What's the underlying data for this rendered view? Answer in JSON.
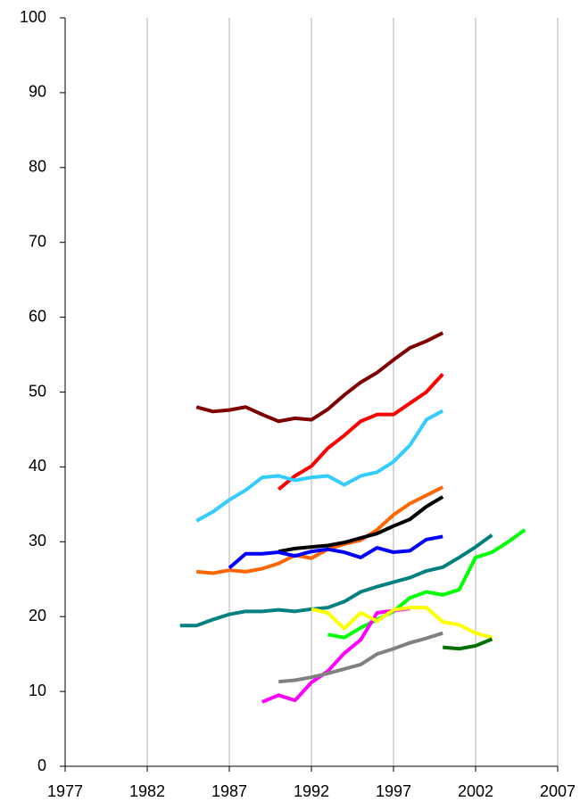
{
  "chart_data": {
    "type": "line",
    "xlim": [
      1977,
      2007
    ],
    "xticks": [
      1977,
      1982,
      1987,
      1992,
      1997,
      2002,
      2007
    ],
    "ylim": [
      0,
      100
    ],
    "yticks": [
      0,
      10,
      20,
      30,
      40,
      50,
      60,
      70,
      80,
      90,
      100
    ],
    "grid": "x",
    "series": [
      {
        "color": "#800000",
        "x": [
          1985,
          1986,
          1987,
          1988,
          1989,
          1990,
          1991,
          1992,
          1993,
          1994,
          1995,
          1996,
          1997,
          1998,
          1999,
          2000
        ],
        "values": [
          48,
          47.4,
          47.6,
          48,
          47,
          46.1,
          46.5,
          46.3,
          47.7,
          49.6,
          51.3,
          52.6,
          54.3,
          55.9,
          56.8,
          57.9
        ]
      },
      {
        "color": "#ff0000",
        "x": [
          1990,
          1991,
          1992,
          1993,
          1994,
          1995,
          1996,
          1997,
          1998,
          1999,
          2000
        ],
        "values": [
          37,
          38.8,
          40.1,
          42.5,
          44.2,
          46.1,
          47,
          47,
          48.5,
          50,
          52.4
        ]
      },
      {
        "color": "#33ccff",
        "x": [
          1985,
          1986,
          1987,
          1988,
          1989,
          1990,
          1991,
          1992,
          1993,
          1994,
          1995,
          1996,
          1997,
          1998,
          1999,
          2000
        ],
        "values": [
          32.8,
          34,
          35.6,
          36.9,
          38.6,
          38.8,
          38.2,
          38.6,
          38.8,
          37.6,
          38.8,
          39.3,
          40.7,
          42.9,
          46.3,
          47.5
        ]
      },
      {
        "color": "#ff6600",
        "x": [
          1985,
          1986,
          1987,
          1988,
          1989,
          1990,
          1991,
          1992,
          1993,
          1994,
          1995,
          1996,
          1997,
          1998,
          1999,
          2000
        ],
        "values": [
          26,
          25.8,
          26.2,
          26,
          26.4,
          27.1,
          28.2,
          27.8,
          29,
          29.7,
          30.2,
          31.6,
          33.6,
          35.1,
          36.2,
          37.3
        ]
      },
      {
        "color": "#000000",
        "x": [
          1990,
          1991,
          1992,
          1993,
          1994,
          1995,
          1996,
          1997,
          1998,
          1999,
          2000
        ],
        "values": [
          28.7,
          29.1,
          29.3,
          29.5,
          29.9,
          30.5,
          31.1,
          32.1,
          33,
          34.7,
          36
        ]
      },
      {
        "color": "#0000ff",
        "x": [
          1987,
          1988,
          1989,
          1990,
          1991,
          1992,
          1993,
          1994,
          1995,
          1996,
          1997,
          1998,
          1999,
          2000
        ],
        "values": [
          26.5,
          28.4,
          28.4,
          28.6,
          28.1,
          28.7,
          29,
          28.6,
          27.9,
          29.2,
          28.6,
          28.8,
          30.3,
          30.7
        ]
      },
      {
        "color": "#008080",
        "x": [
          1984,
          1985,
          1986,
          1987,
          1988,
          1989,
          1990,
          1991,
          1992,
          1993,
          1994,
          1995,
          1996,
          1997,
          1998,
          1999,
          2000,
          2001,
          2002,
          2003
        ],
        "values": [
          18.8,
          18.8,
          19.6,
          20.3,
          20.7,
          20.7,
          20.9,
          20.7,
          21,
          21.2,
          22,
          23.3,
          24,
          24.6,
          25.2,
          26.1,
          26.6,
          27.9,
          29.3,
          30.9
        ]
      },
      {
        "color": "#00ff00",
        "x": [
          1993,
          1994,
          1995,
          1996,
          1997,
          1998,
          1999,
          2000,
          2001,
          2002,
          2003,
          2004,
          2005
        ],
        "values": [
          17.6,
          17.2,
          18.5,
          19.6,
          20.7,
          22.5,
          23.3,
          22.9,
          23.6,
          27.9,
          28.6,
          30,
          31.6
        ]
      },
      {
        "color": "#ff00ff",
        "x": [
          1989,
          1990,
          1991,
          1992,
          1993,
          1994,
          1995,
          1996,
          1997,
          1998
        ],
        "values": [
          8.6,
          9.5,
          8.8,
          11.2,
          12.7,
          15.1,
          16.9,
          20.5,
          20.8,
          21.1
        ]
      },
      {
        "color": "#ffff00",
        "x": [
          1992,
          1993,
          1994,
          1995,
          1996,
          1997,
          1998,
          1999,
          2000,
          2001,
          2002,
          2003
        ],
        "values": [
          21,
          20.5,
          18.4,
          20.5,
          19.4,
          20.9,
          21.2,
          21.2,
          19.3,
          18.9,
          17.8,
          17.2
        ]
      },
      {
        "color": "#808080",
        "x": [
          1990,
          1991,
          1992,
          1993,
          1994,
          1995,
          1996,
          1997,
          1998,
          1999,
          2000
        ],
        "values": [
          11.3,
          11.5,
          11.9,
          12.4,
          13,
          13.6,
          15,
          15.7,
          16.5,
          17.1,
          17.8
        ]
      },
      {
        "color": "#007000",
        "x": [
          2000,
          2001,
          2002,
          2003
        ],
        "values": [
          15.9,
          15.7,
          16.1,
          17
        ]
      }
    ]
  }
}
